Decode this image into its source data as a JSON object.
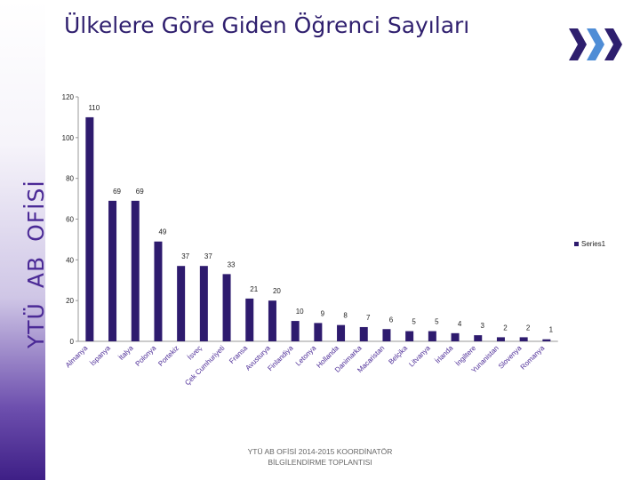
{
  "header": {
    "title": "Ülkelere Göre Giden Öğrenci Sayıları"
  },
  "sidebar": {
    "text_parts": [
      "YTÜ",
      "AB",
      "OFİSİ"
    ]
  },
  "logo": {
    "icon": "triple-chevron-right-icon",
    "colors": [
      "#2e1f6e",
      "#4f8dd6",
      "#2e1f6e"
    ]
  },
  "colors": {
    "bar": "#2e1b6e",
    "sidebar_text": "#4b2a96",
    "sidebar_gradient_bottom": "#3e1f86"
  },
  "chart_data": {
    "type": "bar",
    "title": "",
    "xlabel": "",
    "ylabel": "",
    "ylim": [
      0,
      120
    ],
    "yticks": [
      0,
      20,
      40,
      60,
      80,
      100,
      120
    ],
    "grid": false,
    "legend_position": "right",
    "categories": [
      "Almanya",
      "İspanya",
      "İtalya",
      "Polonya",
      "Portekiz",
      "İsveç",
      "Çek Cumhuriyeti",
      "Fransa",
      "Avusturya",
      "Finlandiya",
      "Letonya",
      "Hollanda",
      "Danimarka",
      "Macaristan",
      "Belçika",
      "Litvanya",
      "İrlanda",
      "İngiltere",
      "Yunanistan",
      "Slovenya",
      "Romanya"
    ],
    "series": [
      {
        "name": "Series1",
        "values": [
          110,
          69,
          69,
          49,
          37,
          37,
          33,
          21,
          20,
          10,
          9,
          8,
          7,
          6,
          5,
          5,
          4,
          3,
          2,
          2,
          1
        ]
      }
    ]
  },
  "footer": {
    "line1": "YTÜ AB OFİSİ 2014-2015   KOORDİNATÖR",
    "line2": "BİLGİLENDİRME TOPLANTISI"
  }
}
